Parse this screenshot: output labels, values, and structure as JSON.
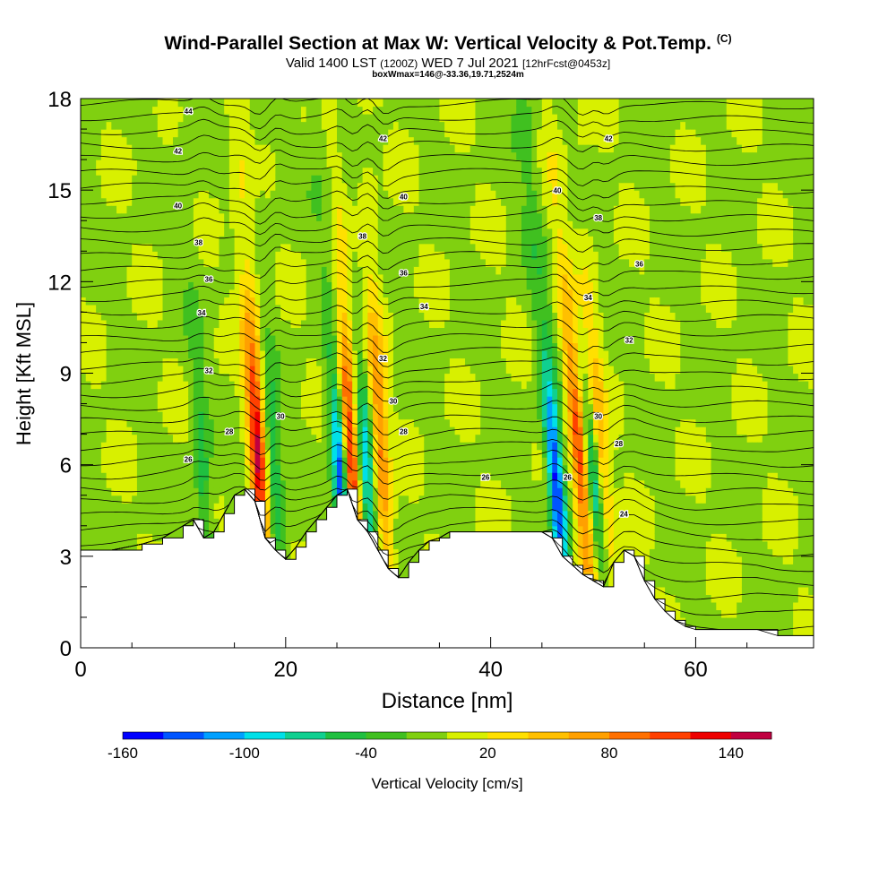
{
  "title": {
    "main": "Wind-Parallel Section at Max W: Vertical Velocity & Pot.Temp.",
    "copyright": "(C)",
    "valid_prefix": "Valid 1400 LST",
    "valid_utc": "(1200Z)",
    "valid_date": "WED 7 Jul 2021",
    "forecast": "[12hrFcst@0453z]",
    "box_info": "boxWmax=146@-33.36,19.71,2524m"
  },
  "chart_data": {
    "type": "heatmap",
    "xlabel": "Distance [nm]",
    "ylabel": "Height [Kft MSL]",
    "xlim": [
      0,
      71.5
    ],
    "ylim": [
      0,
      18
    ],
    "x_ticks": [
      0,
      20,
      40,
      60
    ],
    "y_ticks": [
      0,
      3,
      6,
      9,
      12,
      15,
      18
    ],
    "colorbar": {
      "label": "Vertical Velocity [cm/s]",
      "tick_labels": [
        "-160",
        "-100",
        "-40",
        "20",
        "80",
        "140"
      ],
      "tick_values": [
        -160,
        -100,
        -40,
        20,
        80,
        140
      ],
      "range": [
        -160,
        160
      ],
      "colors": [
        "#0000ff",
        "#0055ff",
        "#00a0ff",
        "#00e0e8",
        "#10d090",
        "#20c040",
        "#40c020",
        "#80d010",
        "#d8f000",
        "#ffe000",
        "#ffc000",
        "#ffa000",
        "#ff7000",
        "#ff4000",
        "#ee0000",
        "#c00040"
      ]
    },
    "updraft_columns": [
      {
        "x": 17.5,
        "w": 140
      },
      {
        "x": 26.5,
        "w": 150
      },
      {
        "x": 29.5,
        "w": 90
      },
      {
        "x": 49.0,
        "w": 120
      },
      {
        "x": 51.0,
        "w": 80
      }
    ],
    "downdraft_columns": [
      {
        "x": 25.5,
        "w": -150
      },
      {
        "x": 28.0,
        "w": -90
      },
      {
        "x": 46.5,
        "w": -150
      },
      {
        "x": 50.3,
        "w": -90
      },
      {
        "x": 19.0,
        "w": -60
      },
      {
        "x": 12.0,
        "w": -50
      }
    ],
    "terrain_kft": {
      "x": [
        0,
        3,
        6,
        8,
        10,
        11,
        12,
        13,
        14,
        15,
        16,
        17,
        18,
        19,
        20,
        21,
        22,
        23,
        24,
        25,
        26,
        27,
        28,
        29,
        30,
        31,
        32,
        33,
        34,
        35,
        36,
        37,
        38,
        39,
        40,
        41,
        42,
        43,
        44,
        45,
        46,
        47,
        48,
        49,
        50,
        51,
        52,
        53,
        54,
        55,
        56,
        57,
        58,
        59,
        60,
        61,
        62,
        64,
        66,
        68,
        70,
        71.5
      ],
      "y": [
        3.2,
        3.2,
        3.4,
        3.6,
        4.0,
        4.2,
        3.6,
        3.8,
        4.4,
        5.0,
        5.2,
        4.8,
        3.6,
        3.2,
        2.9,
        3.3,
        3.8,
        4.2,
        4.6,
        5.0,
        5.2,
        4.2,
        3.8,
        3.2,
        2.6,
        2.3,
        2.8,
        3.2,
        3.5,
        3.6,
        3.8,
        3.8,
        3.8,
        3.8,
        3.8,
        3.8,
        3.8,
        3.8,
        3.8,
        3.8,
        3.6,
        3.0,
        2.7,
        2.4,
        2.2,
        2.0,
        2.8,
        3.2,
        3.0,
        2.2,
        1.6,
        1.2,
        0.9,
        0.7,
        0.6,
        0.6,
        0.6,
        0.6,
        0.6,
        0.4,
        0.4,
        0.4
      ]
    },
    "theta_contour_labels": [
      {
        "x": 10.5,
        "y": 17.5,
        "text": "44"
      },
      {
        "x": 9.5,
        "y": 16.2,
        "text": "42"
      },
      {
        "x": 9.5,
        "y": 14.4,
        "text": "40"
      },
      {
        "x": 11.5,
        "y": 13.2,
        "text": "38"
      },
      {
        "x": 12.5,
        "y": 12.0,
        "text": "36"
      },
      {
        "x": 11.8,
        "y": 10.9,
        "text": "34"
      },
      {
        "x": 12.5,
        "y": 9.0,
        "text": "32"
      },
      {
        "x": 19.5,
        "y": 7.5,
        "text": "30"
      },
      {
        "x": 14.5,
        "y": 7.0,
        "text": "28"
      },
      {
        "x": 10.5,
        "y": 6.1,
        "text": "26"
      },
      {
        "x": 29.5,
        "y": 16.6,
        "text": "42"
      },
      {
        "x": 31.5,
        "y": 14.7,
        "text": "40"
      },
      {
        "x": 27.5,
        "y": 13.4,
        "text": "38"
      },
      {
        "x": 31.5,
        "y": 12.2,
        "text": "36"
      },
      {
        "x": 33.5,
        "y": 11.1,
        "text": "34"
      },
      {
        "x": 29.5,
        "y": 9.4,
        "text": "32"
      },
      {
        "x": 30.5,
        "y": 8.0,
        "text": "30"
      },
      {
        "x": 31.5,
        "y": 7.0,
        "text": "28"
      },
      {
        "x": 39.5,
        "y": 5.5,
        "text": "26"
      },
      {
        "x": 51.5,
        "y": 16.6,
        "text": "42"
      },
      {
        "x": 46.5,
        "y": 14.9,
        "text": "40"
      },
      {
        "x": 50.5,
        "y": 14.0,
        "text": "38"
      },
      {
        "x": 54.5,
        "y": 12.5,
        "text": "36"
      },
      {
        "x": 49.5,
        "y": 11.4,
        "text": "34"
      },
      {
        "x": 53.5,
        "y": 10.0,
        "text": "32"
      },
      {
        "x": 50.5,
        "y": 7.5,
        "text": "30"
      },
      {
        "x": 52.5,
        "y": 6.6,
        "text": "28"
      },
      {
        "x": 47.5,
        "y": 5.5,
        "text": "26"
      },
      {
        "x": 53.0,
        "y": 4.3,
        "text": "24"
      }
    ],
    "grid": false,
    "legend_position": "bottom"
  }
}
